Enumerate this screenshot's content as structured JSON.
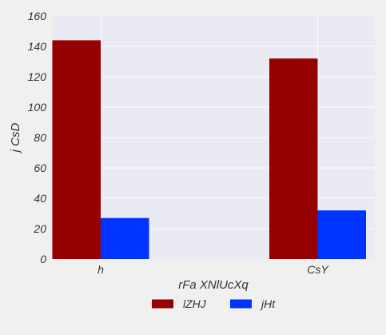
{
  "chart_data": {
    "type": "bar",
    "title": "",
    "xlabel": "rFa XNlUcXq",
    "ylabel": "j CsD",
    "categories": [
      "h",
      "CsY"
    ],
    "series": [
      {
        "name": "lZHJ",
        "color": "#960000",
        "values": [
          144,
          132
        ]
      },
      {
        "name": "jHt",
        "color": "#0033ff",
        "values": [
          27,
          32
        ]
      }
    ],
    "ylim": [
      0,
      160
    ],
    "yticks": [
      0,
      20,
      40,
      60,
      80,
      100,
      120,
      140,
      160
    ],
    "grid": true,
    "legend_position": "bottom-center"
  },
  "colors": {
    "plot_background": "#eaeaf2",
    "page_background": "#f0f0f0",
    "grid": "#ffffff"
  }
}
